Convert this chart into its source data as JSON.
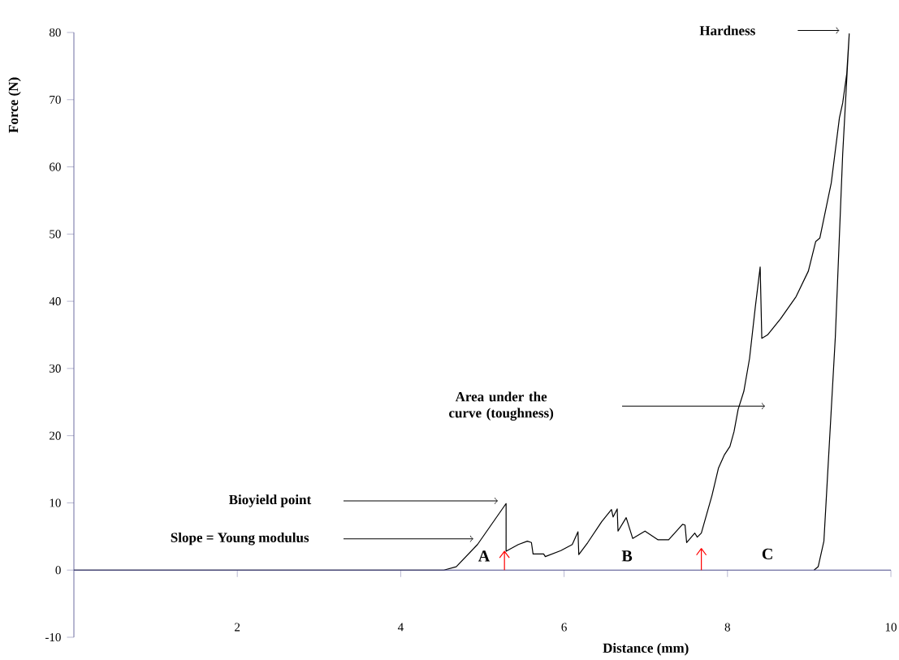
{
  "chart_data": {
    "type": "line",
    "xlabel": "Distance (mm)",
    "ylabel": "Force (N)",
    "color": "#000000",
    "x": [
      0,
      4.53,
      4.68,
      4.94,
      5.29,
      5.29,
      5.44,
      5.55,
      5.6,
      5.62,
      5.75,
      5.77,
      5.96,
      6.1,
      6.17,
      6.18,
      6.29,
      6.46,
      6.58,
      6.6,
      6.65,
      6.66,
      6.76,
      6.84,
      6.99,
      7.15,
      7.28,
      7.45,
      7.48,
      7.5,
      7.6,
      7.63,
      7.68,
      7.81,
      7.89,
      7.96,
      8.03,
      8.08,
      8.13,
      8.2,
      8.27,
      8.34,
      8.4,
      8.42,
      8.49,
      8.65,
      8.84,
      8.99,
      9.08,
      9.13,
      9.27,
      9.37,
      9.41,
      9.46,
      9.49,
      9.41,
      9.32,
      9.22,
      9.18,
      9.11,
      9.06
    ],
    "values": [
      0,
      0,
      0.5,
      3.8,
      9.9,
      2.8,
      3.8,
      4.3,
      4.1,
      2.4,
      2.4,
      2.0,
      2.9,
      3.8,
      5.7,
      2.3,
      4.1,
      7.2,
      9.0,
      7.9,
      9.1,
      5.8,
      7.8,
      4.7,
      5.8,
      4.5,
      4.5,
      6.8,
      6.7,
      4.1,
      5.5,
      4.9,
      5.5,
      11.1,
      15.2,
      17.1,
      18.4,
      20.6,
      23.9,
      26.6,
      31.5,
      39.1,
      45.1,
      34.5,
      35.0,
      37.4,
      40.7,
      44.5,
      48.9,
      49.4,
      57.6,
      67.3,
      69.5,
      73.9,
      79.8,
      61.9,
      34.7,
      13.0,
      4.3,
      0.5,
      0
    ],
    "xlim": [
      0,
      10
    ],
    "ylim": [
      -10,
      80
    ],
    "xticks": [
      2,
      4,
      6,
      8,
      10
    ],
    "yticks": [
      -10,
      0,
      10,
      20,
      30,
      40,
      50,
      60,
      70,
      80
    ],
    "ref_lines": [
      {
        "axis": "y",
        "value": 0,
        "color": "#4a4a8a"
      }
    ],
    "annotations": [
      "Hardness",
      "Area under the curve (toughness)",
      "Bioyield point",
      "Slope = Young modulus",
      "A",
      "B",
      "C"
    ]
  }
}
